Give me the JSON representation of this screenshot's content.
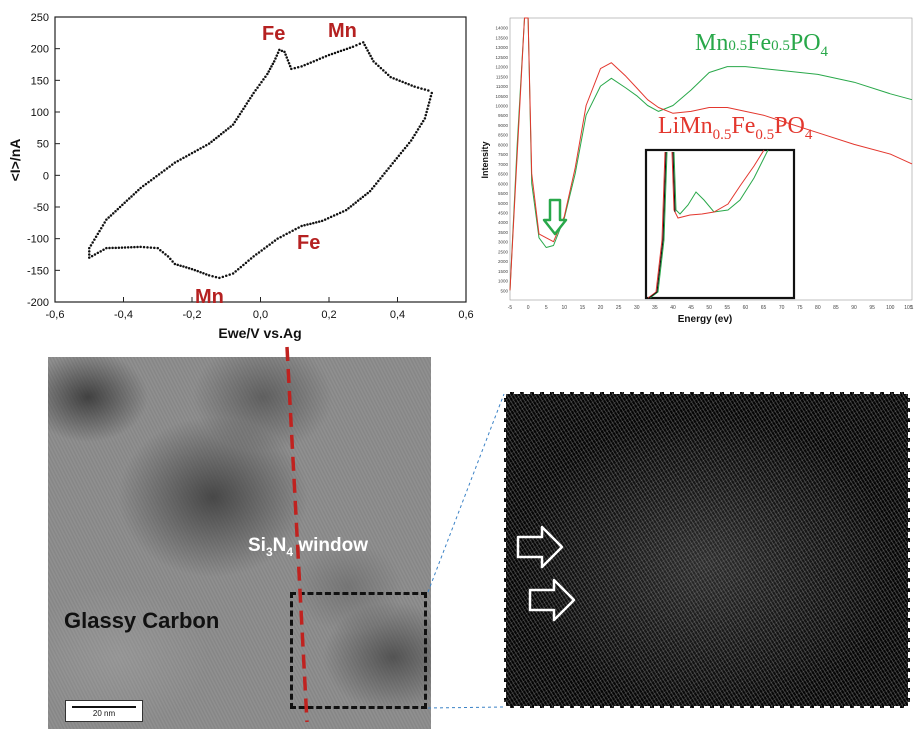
{
  "cv_plot": {
    "ylabel": "<I>/nA",
    "xlabel": "Ewe/V vs.Ag",
    "x_ticks": [
      "-0,6",
      "-0,4",
      "-0,2",
      "0,0",
      "0,2",
      "0,4",
      "0,6"
    ],
    "y_ticks": [
      "250",
      "200",
      "150",
      "100",
      "50",
      "0",
      "-50",
      "-100",
      "-150",
      "-200"
    ],
    "annotations": {
      "fe_top": "Fe",
      "mn_top": "Mn",
      "fe_bottom": "Fe",
      "mn_bottom": "Mn"
    },
    "annotation_color": "#b52121"
  },
  "eels_plot": {
    "ylabel": "Intensity",
    "xlabel": "Energy (ev)",
    "y_ticks": [
      "14000",
      "13500",
      "13000",
      "12500",
      "12000",
      "11500",
      "11000",
      "10500",
      "10000",
      "9500",
      "9000",
      "8500",
      "8000",
      "7500",
      "7000",
      "6500",
      "6000",
      "5500",
      "5000",
      "4500",
      "4000",
      "3500",
      "3000",
      "2500",
      "2000",
      "1500",
      "1000",
      "500"
    ],
    "x_ticks": [
      "-5",
      "0",
      "5",
      "10",
      "15",
      "20",
      "25",
      "30",
      "35",
      "40",
      "45",
      "50",
      "55",
      "60",
      "65",
      "70",
      "75",
      "80",
      "85",
      "90",
      "95",
      "100",
      "105",
      "1"
    ],
    "series_green": {
      "label_main": "Mn",
      "label_sub1": "0.5",
      "label_mid": "Fe",
      "label_sub2": "0.5",
      "label_end": "PO",
      "label_sub3": "4",
      "color": "#29a84a"
    },
    "series_red": {
      "label_main": "LiMn",
      "label_sub1": "0.5",
      "label_mid": "Fe",
      "label_sub2": "0.5",
      "label_end": "PO",
      "label_sub3": "4",
      "color": "#e3372e"
    }
  },
  "tem_image": {
    "label_carbon": "Glassy Carbon",
    "label_window_a": "Si",
    "label_window_sub1": "3",
    "label_window_b": "N",
    "label_window_sub2": "4",
    "label_window_c": " window",
    "scale_bar": "20 nm"
  },
  "chart_data": [
    {
      "type": "scatter",
      "xlabel": "Ewe/V vs.Ag",
      "ylabel": "<I>/nA",
      "xlim": [
        -0.6,
        0.6
      ],
      "ylim": [
        -200,
        250
      ],
      "grid": false,
      "series": [
        {
          "name": "",
          "points": [
            [
              -0.5,
              -130
            ],
            [
              -0.45,
              -115
            ],
            [
              -0.35,
              -113
            ],
            [
              -0.3,
              -115
            ],
            [
              -0.27,
              -128
            ],
            [
              -0.25,
              -140
            ],
            [
              -0.2,
              -148
            ],
            [
              -0.15,
              -158
            ],
            [
              -0.12,
              -162
            ],
            [
              -0.08,
              -155
            ],
            [
              -0.02,
              -128
            ],
            [
              0.05,
              -100
            ],
            [
              0.12,
              -80
            ],
            [
              0.18,
              -72
            ],
            [
              0.25,
              -55
            ],
            [
              0.32,
              -25
            ],
            [
              0.38,
              15
            ],
            [
              0.44,
              55
            ],
            [
              0.48,
              90
            ],
            [
              0.5,
              130
            ],
            [
              0.49,
              134
            ],
            [
              0.45,
              140
            ],
            [
              0.38,
              155
            ],
            [
              0.33,
              180
            ],
            [
              0.3,
              210
            ],
            [
              0.27,
              203
            ],
            [
              0.2,
              190
            ],
            [
              0.12,
              172
            ],
            [
              0.09,
              168
            ],
            [
              0.07,
              195
            ],
            [
              0.055,
              198
            ],
            [
              0.04,
              180
            ],
            [
              0.02,
              160
            ],
            [
              -0.02,
              130
            ],
            [
              -0.08,
              80
            ],
            [
              -0.15,
              50
            ],
            [
              -0.25,
              20
            ],
            [
              -0.35,
              -20
            ],
            [
              -0.45,
              -70
            ],
            [
              -0.5,
              -115
            ]
          ]
        }
      ],
      "annotations": [
        "Fe",
        "Mn",
        "Fe",
        "Mn"
      ]
    },
    {
      "type": "line",
      "xlabel": "Energy (ev)",
      "ylabel": "Intensity",
      "xlim": [
        -5,
        106
      ],
      "ylim": [
        0,
        14500
      ],
      "grid": false,
      "series": [
        {
          "name": "Mn0.5Fe0.5PO4",
          "x": [
            -5,
            -3,
            -1,
            0,
            1,
            3,
            5,
            7,
            10,
            13,
            16,
            20,
            23,
            27,
            30,
            33,
            36,
            40,
            45,
            50,
            55,
            60,
            65,
            70,
            80,
            90,
            100,
            106
          ],
          "y": [
            500,
            8000,
            14500,
            14500,
            6000,
            3200,
            2700,
            2800,
            4200,
            6500,
            9500,
            11000,
            11400,
            10900,
            10500,
            10000,
            9700,
            10000,
            10800,
            11700,
            12000,
            12000,
            11900,
            11800,
            11600,
            11200,
            10600,
            10300
          ]
        },
        {
          "name": "LiMn0.5Fe0.5PO4",
          "x": [
            -5,
            -3,
            -1,
            0,
            1,
            3,
            5,
            7,
            10,
            13,
            16,
            20,
            23,
            27,
            30,
            33,
            36,
            40,
            45,
            50,
            55,
            60,
            65,
            70,
            80,
            90,
            100,
            106
          ],
          "y": [
            500,
            7500,
            14500,
            14500,
            6500,
            3400,
            3200,
            3000,
            4300,
            6800,
            10000,
            11900,
            12200,
            11500,
            10900,
            10300,
            9900,
            9600,
            9700,
            9900,
            9900,
            9700,
            9500,
            9200,
            8600,
            8000,
            7500,
            7000
          ]
        }
      ]
    }
  ]
}
